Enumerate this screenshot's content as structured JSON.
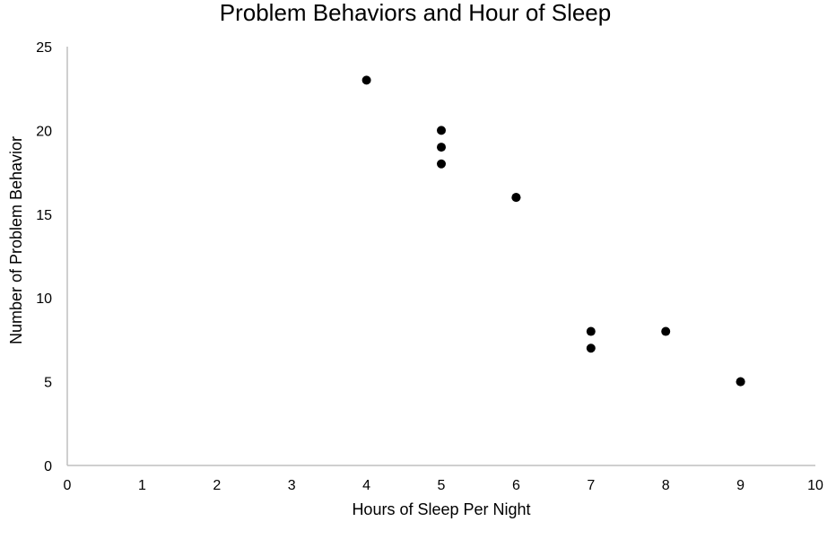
{
  "chart_data": {
    "type": "scatter",
    "title": "Problem Behaviors and Hour of Sleep",
    "xlabel": "Hours of Sleep Per Night",
    "ylabel": "Number of Problem Behavior",
    "xlim": [
      0,
      10
    ],
    "ylim": [
      0,
      25
    ],
    "x_ticks": [
      "0",
      "1",
      "2",
      "3",
      "4",
      "5",
      "6",
      "7",
      "8",
      "9",
      "10"
    ],
    "y_ticks": [
      "0",
      "5",
      "10",
      "15",
      "20",
      "25"
    ],
    "grid": false,
    "legend": "none",
    "marker_color": "#000000",
    "axis_color": "#bfbfbf",
    "points": [
      {
        "x": 4,
        "y": 23
      },
      {
        "x": 5,
        "y": 20
      },
      {
        "x": 5,
        "y": 19
      },
      {
        "x": 5,
        "y": 18
      },
      {
        "x": 6,
        "y": 16
      },
      {
        "x": 6,
        "y": 16
      },
      {
        "x": 7,
        "y": 8
      },
      {
        "x": 7,
        "y": 7
      },
      {
        "x": 8,
        "y": 8
      },
      {
        "x": 9,
        "y": 5
      },
      {
        "x": 9,
        "y": 5
      }
    ]
  }
}
